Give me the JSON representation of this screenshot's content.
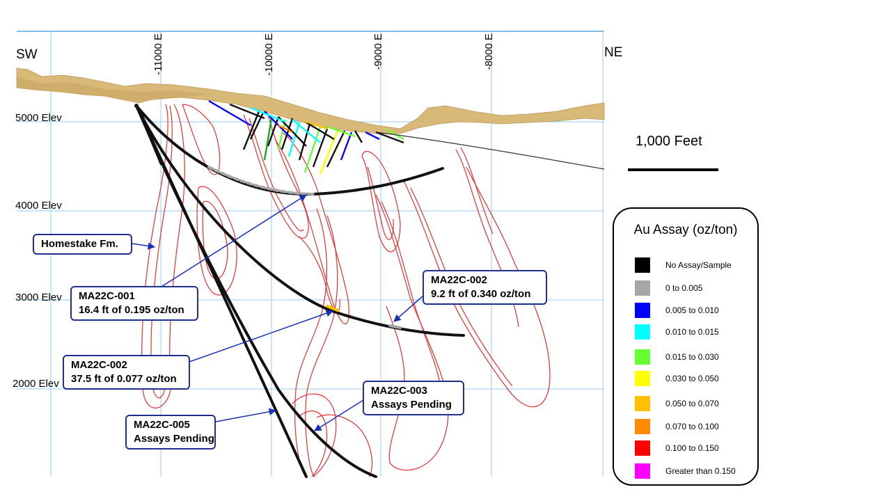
{
  "directions": {
    "left": "SW",
    "right": "NE"
  },
  "eastings": [
    "-11000 E",
    "-10000 E",
    "-9000 E",
    "-8000 E"
  ],
  "elevations": [
    "5000 Elev",
    "4000 Elev",
    "3000 Elev",
    "2000 Elev"
  ],
  "callouts": {
    "homestake": "Homestake Fm.",
    "ma22c001": {
      "hole": "MA22C-001",
      "result": "16.4 ft of 0.195 oz/ton"
    },
    "ma22c002_upper": {
      "hole": "MA22C-002",
      "result": "9.2 ft of 0.340 oz/ton"
    },
    "ma22c002_lower": {
      "hole": "MA22C-002",
      "result": "37.5 ft of 0.077 oz/ton"
    },
    "ma22c003": {
      "hole": "MA22C-003",
      "result": "Assays Pending"
    },
    "ma22c005": {
      "hole": "MA22C-005",
      "result": "Assays Pending"
    }
  },
  "scale": {
    "label": "1,000 Feet"
  },
  "legend": {
    "title": "Au Assay (oz/ton)",
    "items": [
      {
        "label": "No Assay/Sample",
        "color": "#000000"
      },
      {
        "label": "0 to 0.005",
        "color": "#a6a6a6"
      },
      {
        "label": "0.005  to 0.010",
        "color": "#0000ff"
      },
      {
        "label": "0.010  to 0.015",
        "color": "#00ffff"
      },
      {
        "label": "0.015  to 0.030",
        "color": "#66ff33"
      },
      {
        "label": "0.030  to 0.050",
        "color": "#ffff00"
      },
      {
        "label": "0.050  to 0.070",
        "color": "#ffc000"
      },
      {
        "label": "0.070  to 0.100",
        "color": "#ff8c00"
      },
      {
        "label": "0.100  to 0.150",
        "color": "#ff0000"
      },
      {
        "label": "Greater than 0.150",
        "color": "#ff00ff"
      }
    ]
  },
  "colors": {
    "terrain": "#d9b978",
    "grid": "#a8d4f0",
    "homestake_formation": "#e03030",
    "drill_trace": "#111111",
    "callout_border": "#1f2f8f",
    "leader": "#1a2fb8"
  }
}
